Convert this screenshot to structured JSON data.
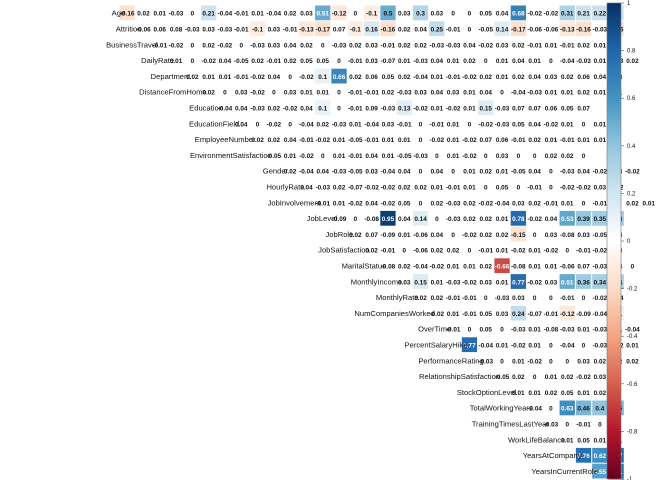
{
  "chart_data": {
    "type": "heatmap",
    "variant": "correlation matrix, upper triangle, numeric cell labels",
    "variables": [
      "Age",
      "Attrition",
      "BusinessTravel",
      "DailyRate",
      "Department",
      "DistanceFromHome",
      "Education",
      "EducationField",
      "EmployeeNumber",
      "EnvironmentSatisfaction",
      "Gender",
      "HourlyRate",
      "JobInvolvement",
      "JobLevel",
      "JobRole",
      "JobSatisfaction",
      "MaritalStatus",
      "MonthlyIncome",
      "MonthlyRate",
      "NumCompaniesWorked",
      "OverTime",
      "PercentSalaryHike",
      "PerformanceRating",
      "RelationshipSatisfaction",
      "StockOptionLevel",
      "TotalWorkingYears",
      "TrainingTimesLastYear",
      "WorkLifeBalance",
      "YearsAtCompany",
      "YearsInCurrentRole",
      "YearsSinceLastPromotion"
    ],
    "rows": [
      [
        -0.16,
        0.02,
        0.01,
        -0.03,
        0,
        0.21,
        -0.04,
        -0.01,
        0.01,
        -0.04,
        0.02,
        0.03,
        0.51,
        -0.12,
        0,
        -0.1,
        0.5,
        0.03,
        0.3,
        0.03,
        0,
        0,
        0.05,
        0.04,
        0.68,
        -0.02,
        -0.02,
        0.31,
        0.21,
        0.22,
        0.2
      ],
      [
        -0.06,
        0.06,
        0.08,
        -0.03,
        0.03,
        -0.03,
        -0.01,
        -0.1,
        0.03,
        -0.01,
        -0.13,
        -0.17,
        0.07,
        -0.1,
        0.16,
        -0.16,
        0.02,
        0.04,
        0.25,
        -0.01,
        0,
        -0.05,
        0.14,
        -0.17,
        -0.06,
        -0.06,
        -0.13,
        -0.16,
        -0.03,
        -0.16
      ],
      [
        -0.01,
        -0.02,
        0,
        0.02,
        -0.02,
        0,
        -0.03,
        0.03,
        0.04,
        0.02,
        0,
        -0.03,
        0.02,
        0.03,
        -0.01,
        0.02,
        0.02,
        -0.03,
        -0.03,
        0.04,
        -0.02,
        0.03,
        0.02,
        -0.01,
        0.01,
        -0.01,
        0.02,
        0.01
      ],
      [
        0.01,
        0,
        -0.02,
        0.04,
        -0.05,
        0.02,
        -0.01,
        0.02,
        0.05,
        0.05,
        0,
        -0.01,
        0.03,
        -0.07,
        0.01,
        -0.03,
        0.04,
        0.01,
        0.02,
        0,
        0.01,
        0.04,
        0.01,
        0,
        -0.04,
        -0.03,
        0.01,
        -0.03,
        0.02
      ],
      [
        0.02,
        0.01,
        0.01,
        -0.01,
        -0.02,
        0.04,
        0,
        -0.02,
        0.1,
        0.66,
        0.02,
        0.06,
        0.05,
        0.02,
        -0.04,
        0.01,
        -0.01,
        -0.02,
        0.02,
        0.01,
        0.02,
        0.04,
        0.03,
        0.02,
        0.06,
        0.04,
        0.03
      ],
      [
        0.02,
        0,
        0.03,
        -0.02,
        0,
        0.03,
        0.01,
        0.01,
        0,
        -0.01,
        -0.01,
        0.02,
        -0.03,
        0.03,
        0.04,
        0.03,
        0.01,
        0.04,
        0,
        -0.04,
        -0.03,
        0.01,
        0.01,
        0.02,
        0.01,
        0.01
      ],
      [
        -0.04,
        0.04,
        -0.03,
        0.02,
        -0.02,
        0.04,
        0.1,
        0,
        -0.01,
        0.09,
        -0.03,
        0.13,
        -0.02,
        0.01,
        -0.02,
        0.01,
        0.15,
        -0.03,
        0.07,
        0.07,
        0.06,
        0.05,
        0.07
      ],
      [
        0.04,
        0,
        -0.02,
        0,
        -0.04,
        0.02,
        -0.03,
        0.01,
        -0.04,
        0.03,
        -0.01,
        0,
        -0.01,
        0.01,
        0,
        -0.02,
        -0.03,
        0.05,
        0.04,
        -0.02,
        0.01,
        0,
        0.01
      ],
      [
        0.02,
        0.02,
        0.04,
        -0.01,
        -0.02,
        0.01,
        -0.05,
        -0.01,
        0.01,
        0.01,
        0,
        -0.02,
        0.01,
        -0.02,
        0.07,
        0.06,
        -0.01,
        0.02,
        0.01,
        -0.01,
        0.01,
        0.01
      ],
      [
        -0.05,
        0.01,
        -0.02,
        0,
        0.01,
        -0.01,
        0.04,
        0.01,
        -0.05,
        -0.03,
        0,
        0.01,
        -0.02,
        0,
        0.03,
        0,
        0,
        0.02,
        0.02,
        0
      ],
      [
        0.02,
        -0.04,
        0.04,
        -0.03,
        -0.05,
        0.03,
        -0.04,
        0.04,
        0,
        0.04,
        0,
        0.01,
        0.02,
        0.01,
        -0.05,
        0.04,
        0,
        -0.03,
        0.04,
        -0.02,
        0.03,
        -0.02
      ],
      [
        0.04,
        -0.03,
        0.02,
        -0.07,
        -0.02,
        -0.02,
        0.02,
        0.02,
        0.01,
        -0.01,
        0.01,
        0,
        0.05,
        0,
        -0.01,
        0,
        -0.02,
        -0.02,
        0.03,
        -0.02
      ],
      [
        -0.01,
        0.01,
        -0.02,
        0.04,
        -0.02,
        0.05,
        0,
        0.02,
        -0.03,
        0.02,
        -0.02,
        -0.04,
        0.03,
        0.02,
        -0.01,
        0.01,
        0,
        -0.01,
        0,
        0.02,
        0.01
      ],
      [
        -0.09,
        0,
        -0.08,
        0.95,
        0.04,
        0.14,
        0,
        -0.03,
        0.02,
        0.02,
        0.01,
        0.78,
        -0.02,
        0.04,
        0.53,
        0.39,
        0.35,
        0.38
      ],
      [
        0.02,
        0.07,
        -0.09,
        0.01,
        -0.06,
        0.04,
        0,
        -0.02,
        0.02,
        0.02,
        -0.15,
        0,
        0.03,
        -0.08,
        0.03,
        -0.05,
        0.04
      ],
      [
        0.02,
        -0.01,
        0,
        -0.06,
        0.02,
        0.02,
        0,
        -0.01,
        0.01,
        -0.02,
        0.01,
        -0.02,
        0,
        -0.01,
        -0.02,
        0.03
      ],
      [
        -0.08,
        0.02,
        -0.04,
        -0.02,
        0.01,
        0.01,
        0.02,
        -0.66,
        -0.08,
        0.01,
        0.01,
        -0.06,
        0.07,
        -0.03,
        0.04,
        0
      ],
      [
        0.03,
        0.15,
        0.01,
        -0.03,
        -0.02,
        0.03,
        0.01,
        0.77,
        -0.02,
        0.03,
        0.51,
        0.36,
        0.34,
        0.34
      ],
      [
        0.02,
        0.02,
        -0.01,
        -0.01,
        0,
        -0.03,
        0.03,
        0,
        0,
        -0.01,
        0,
        -0.02,
        -0.04
      ],
      [
        -0.02,
        0.01,
        -0.01,
        0.05,
        0.03,
        0.24,
        -0.07,
        -0.01,
        -0.12,
        -0.09,
        -0.04,
        0.11
      ],
      [
        -0.01,
        0,
        0.05,
        0,
        -0.03,
        0.01,
        -0.08,
        -0.03,
        0.01,
        -0.03,
        0.01,
        -0.04
      ],
      [
        0.77,
        -0.04,
        0.01,
        -0.02,
        0.01,
        0,
        -0.04,
        0,
        -0.03,
        -0.02,
        0.01
      ],
      [
        -0.03,
        0,
        0.01,
        -0.02,
        0,
        0,
        0.03,
        0.02,
        0.02,
        0.02
      ],
      [
        -0.05,
        0.02,
        0,
        0.01,
        0.02,
        -0.02,
        0.03,
        0
      ],
      [
        0.01,
        0.01,
        0.02,
        0.05,
        0.01,
        0.02
      ],
      [
        -0.04,
        0,
        0.63,
        0.46,
        0.4,
        0.46
      ],
      [
        -0.03,
        0,
        -0.01,
        0,
        0
      ],
      [
        0.01,
        0.05,
        0.01,
        0.01
      ],
      [
        0.76,
        0.62,
        0.77
      ],
      [
        0.55,
        0.71
      ],
      [
        0.51
      ]
    ],
    "color_scale": {
      "min": -1,
      "max": 1,
      "colors": [
        "#67001F",
        "#B2182B",
        "#D6604D",
        "#F4A582",
        "#FDDBC7",
        "#FFFFFF",
        "#D1E5F0",
        "#92C5DE",
        "#4393C3",
        "#2166AC",
        "#053061"
      ]
    },
    "colorbar_ticks": [
      "1",
      "0.8",
      "0.6",
      "0.4",
      "0.2",
      "0",
      "-0.2",
      "-0.4",
      "-0.6",
      "-0.8",
      "-1"
    ]
  }
}
